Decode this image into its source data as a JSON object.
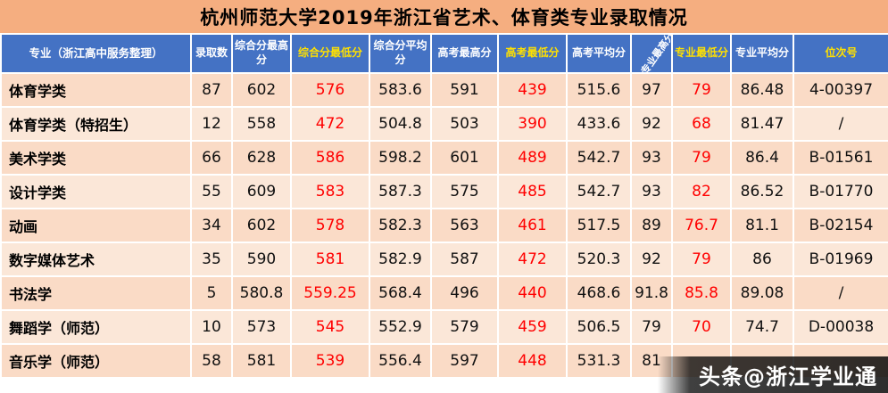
{
  "title": "杭州师范大学2019年浙江省艺术、体育类专业录取情况",
  "watermark": "头条@浙江学业通",
  "colors": {
    "title_bg": "#F5AE80",
    "header_bg": "#4472C4",
    "header_text": "#FFFFFF",
    "header_highlight": "#FFE100",
    "row_odd": "#FADBC6",
    "row_even": "#FBE7D8",
    "min_value_text": "#FF0000"
  },
  "chart_data": {
    "type": "table",
    "title": "杭州师范大学2019年浙江省艺术、体育类专业录取情况",
    "columns": [
      "专业（浙江高中服务整理）",
      "录取数",
      "综合分最高分",
      "综合分最低分",
      "综合分平均分",
      "高考最高分",
      "高考最低分",
      "高考平均分",
      "专业最高分",
      "专业最低分",
      "专业平均分",
      "位次号"
    ],
    "rows": [
      [
        "体育学类",
        "87",
        "602",
        "576",
        "583.6",
        "591",
        "439",
        "515.6",
        "97",
        "79",
        "86.48",
        "4-00397"
      ],
      [
        "体育学类（特招生）",
        "12",
        "558",
        "472",
        "504.8",
        "503",
        "390",
        "433.6",
        "92",
        "68",
        "81.47",
        "/"
      ],
      [
        "美术学类",
        "66",
        "628",
        "586",
        "598.2",
        "601",
        "489",
        "542.7",
        "93",
        "79",
        "86.4",
        "B-01561"
      ],
      [
        "设计学类",
        "55",
        "609",
        "583",
        "587.3",
        "575",
        "485",
        "542.7",
        "93",
        "82",
        "86.52",
        "B-01770"
      ],
      [
        "动画",
        "34",
        "602",
        "578",
        "582.3",
        "563",
        "461",
        "517.5",
        "89",
        "76.7",
        "81.1",
        "B-02154"
      ],
      [
        "数字媒体艺术",
        "35",
        "590",
        "581",
        "582.9",
        "587",
        "472",
        "520.3",
        "92",
        "79",
        "86",
        "B-01969"
      ],
      [
        "书法学",
        "5",
        "580.8",
        "559.25",
        "568.4",
        "496",
        "440",
        "468.6",
        "91.8",
        "85.8",
        "89.08",
        "/"
      ],
      [
        "舞蹈学（师范）",
        "10",
        "573",
        "545",
        "552.9",
        "579",
        "459",
        "506.5",
        "79",
        "70",
        "74.7",
        "D-00038"
      ],
      [
        "音乐学（师范）",
        "58",
        "581",
        "539",
        "556.4",
        "597",
        "448",
        "531.3",
        "81",
        "",
        "",
        ""
      ]
    ]
  }
}
